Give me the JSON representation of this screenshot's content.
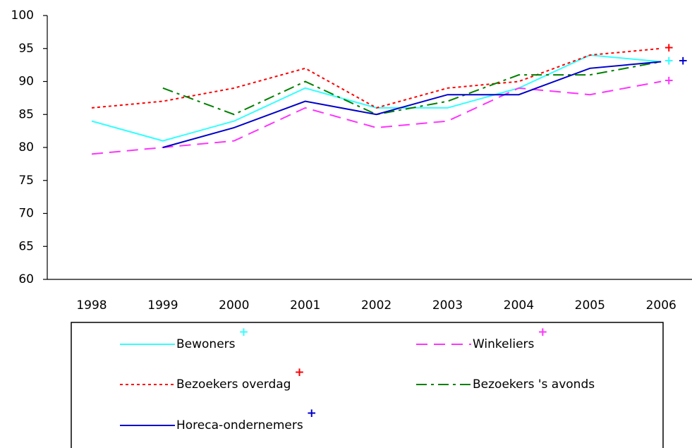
{
  "chart_data": {
    "type": "line",
    "categories": [
      "1998",
      "1999",
      "2000",
      "2001",
      "2002",
      "2003",
      "2004",
      "2005",
      "2006"
    ],
    "series": [
      {
        "name": "Bewoners",
        "color": "#33ffff",
        "style": "solid",
        "significance": "+",
        "values": [
          84,
          81,
          84,
          89,
          86,
          86,
          89,
          94,
          93
        ]
      },
      {
        "name": "Winkeliers",
        "color": "#ff33ff",
        "style": "dashed",
        "significance": "+",
        "values": [
          79,
          80,
          81,
          86,
          83,
          84,
          89,
          88,
          90
        ]
      },
      {
        "name": "Bezoekers overdag",
        "color": "#ff0000",
        "style": "dotted",
        "significance": "+",
        "values": [
          86,
          87,
          89,
          92,
          86,
          89,
          90,
          94,
          95
        ]
      },
      {
        "name": "Bezoekers 's avonds",
        "color": "#008000",
        "style": "dashdot",
        "values": [
          null,
          89,
          85,
          90,
          85,
          87,
          91,
          91,
          93
        ]
      },
      {
        "name": "Horeca-ondernemers",
        "color": "#0000cc",
        "style": "solid",
        "significance": "+",
        "values": [
          null,
          80,
          83,
          87,
          85,
          88,
          88,
          92,
          93
        ]
      }
    ],
    "ylim": [
      60,
      100
    ],
    "yticks": [
      60,
      65,
      70,
      75,
      80,
      85,
      90,
      95,
      100
    ],
    "grid": false
  }
}
